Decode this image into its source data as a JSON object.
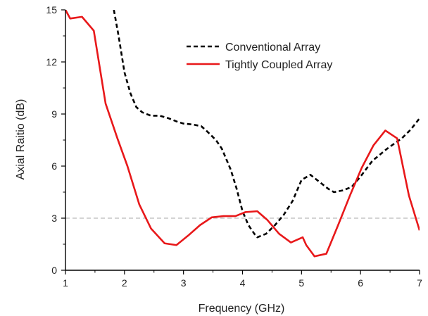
{
  "chart_data": {
    "type": "line",
    "xlabel": "Frequency (GHz)",
    "ylabel": "Axial Raitio (dB)",
    "xlim": [
      1,
      7
    ],
    "ylim": [
      0,
      15
    ],
    "x_ticks": [
      1,
      2,
      3,
      4,
      5,
      6,
      7
    ],
    "y_ticks": [
      0,
      3,
      6,
      9,
      12,
      15
    ],
    "reference_line": {
      "y": 3,
      "style": "dashed",
      "color": "#bbbbbb"
    },
    "legend_position": "top-right",
    "series": [
      {
        "name": "Conventional Array",
        "style": "dashed",
        "color": "#000000",
        "points": [
          [
            1.82,
            15.0
          ],
          [
            1.9,
            13.5
          ],
          [
            2.0,
            11.4
          ],
          [
            2.1,
            10.2
          ],
          [
            2.2,
            9.4
          ],
          [
            2.3,
            9.1
          ],
          [
            2.45,
            8.9
          ],
          [
            2.6,
            8.9
          ],
          [
            2.75,
            8.75
          ],
          [
            2.9,
            8.55
          ],
          [
            3.0,
            8.45
          ],
          [
            3.15,
            8.4
          ],
          [
            3.3,
            8.3
          ],
          [
            3.4,
            8.0
          ],
          [
            3.55,
            7.5
          ],
          [
            3.65,
            7.0
          ],
          [
            3.8,
            5.8
          ],
          [
            3.9,
            4.7
          ],
          [
            4.0,
            3.4
          ],
          [
            4.1,
            2.6
          ],
          [
            4.2,
            2.1
          ],
          [
            4.25,
            1.9
          ],
          [
            4.4,
            2.1
          ],
          [
            4.55,
            2.6
          ],
          [
            4.7,
            3.2
          ],
          [
            4.85,
            4.0
          ],
          [
            5.0,
            5.2
          ],
          [
            5.15,
            5.5
          ],
          [
            5.3,
            5.1
          ],
          [
            5.45,
            4.7
          ],
          [
            5.55,
            4.5
          ],
          [
            5.7,
            4.6
          ],
          [
            5.85,
            4.8
          ],
          [
            6.0,
            5.4
          ],
          [
            6.2,
            6.3
          ],
          [
            6.45,
            7.0
          ],
          [
            6.7,
            7.6
          ],
          [
            6.85,
            8.1
          ],
          [
            7.0,
            8.75
          ]
        ]
      },
      {
        "name": "Tightly Coupled Array",
        "style": "solid",
        "color": "#e8181a",
        "points": [
          [
            1.0,
            15.0
          ],
          [
            1.08,
            14.5
          ],
          [
            1.28,
            14.6
          ],
          [
            1.48,
            13.8
          ],
          [
            1.68,
            9.6
          ],
          [
            1.88,
            7.6
          ],
          [
            2.05,
            6.0
          ],
          [
            2.25,
            3.8
          ],
          [
            2.45,
            2.4
          ],
          [
            2.68,
            1.55
          ],
          [
            2.88,
            1.45
          ],
          [
            3.08,
            2.0
          ],
          [
            3.28,
            2.6
          ],
          [
            3.48,
            3.05
          ],
          [
            3.68,
            3.12
          ],
          [
            3.88,
            3.12
          ],
          [
            4.05,
            3.35
          ],
          [
            4.25,
            3.4
          ],
          [
            4.42,
            2.9
          ],
          [
            4.62,
            2.1
          ],
          [
            4.82,
            1.6
          ],
          [
            5.02,
            1.9
          ],
          [
            5.08,
            1.45
          ],
          [
            5.22,
            0.8
          ],
          [
            5.42,
            0.95
          ],
          [
            5.62,
            2.6
          ],
          [
            5.82,
            4.3
          ],
          [
            6.02,
            5.9
          ],
          [
            6.22,
            7.2
          ],
          [
            6.42,
            8.05
          ],
          [
            6.62,
            7.6
          ],
          [
            6.82,
            4.3
          ],
          [
            7.0,
            2.3
          ]
        ]
      }
    ]
  }
}
